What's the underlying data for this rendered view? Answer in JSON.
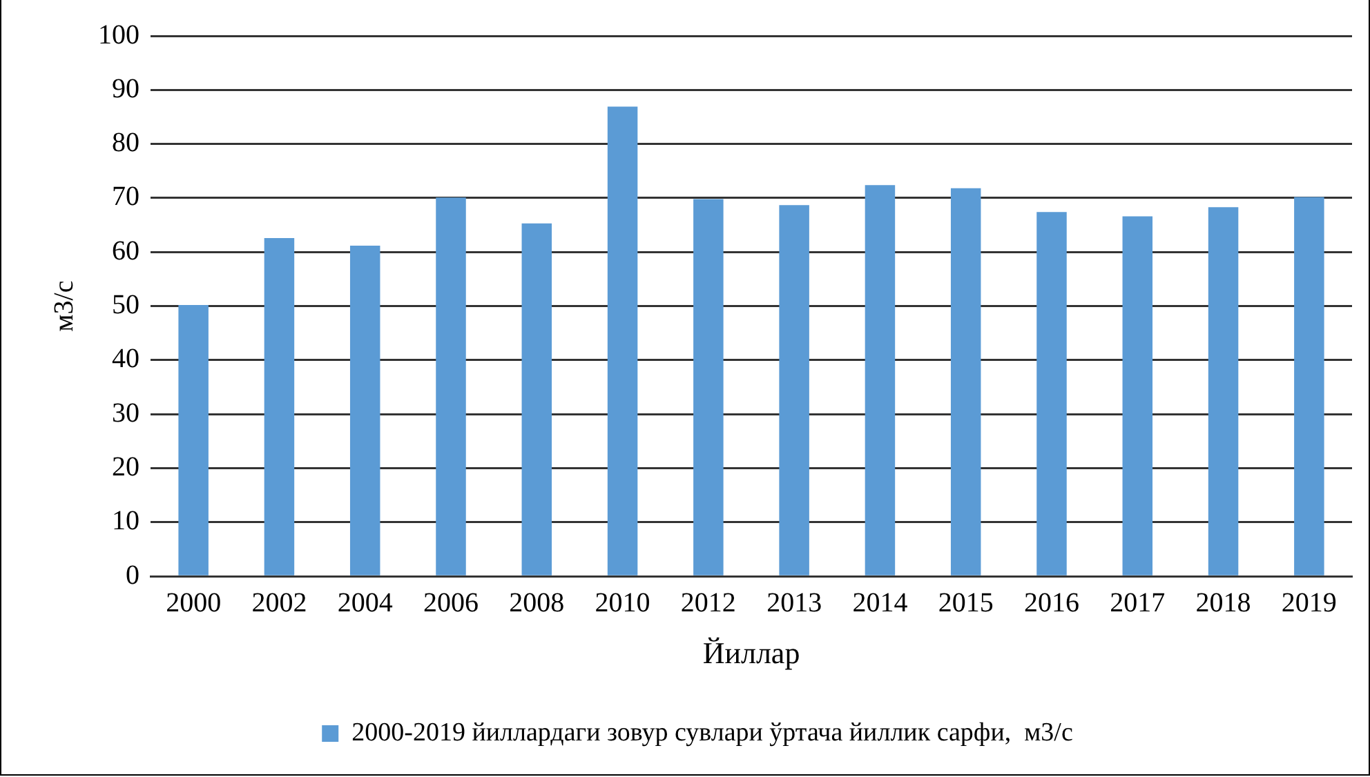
{
  "chart_data": {
    "type": "bar",
    "xlabel": "Йиллар",
    "ylabel": "м3/с",
    "categories": [
      "2000",
      "2002",
      "2004",
      "2006",
      "2008",
      "2010",
      "2012",
      "2013",
      "2014",
      "2015",
      "2016",
      "2017",
      "2018",
      "2019"
    ],
    "series": [
      {
        "name": "2000-2019 йиллардаги зовур сувлари ўртача йиллик сарфи,  м3/с",
        "color": "#5b9bd5",
        "values": [
          50.2,
          62.6,
          61.2,
          70.1,
          65.3,
          86.9,
          69.8,
          68.7,
          72.4,
          71.8,
          67.4,
          66.6,
          68.3,
          70.2
        ]
      }
    ],
    "ylim": [
      0,
      100
    ],
    "yticks": [
      0,
      10,
      20,
      30,
      40,
      50,
      60,
      70,
      80,
      90,
      100
    ],
    "grid": "y",
    "legend": "bottom"
  }
}
